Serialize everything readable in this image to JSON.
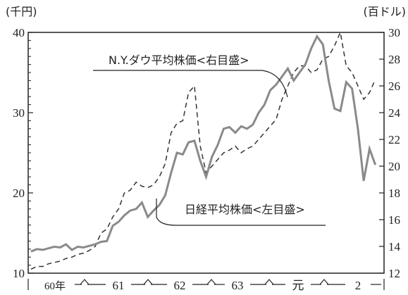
{
  "chart_data": {
    "type": "line",
    "left_unit": "(千円)",
    "right_unit": "(百ドル)",
    "left_ylim": [
      10,
      40
    ],
    "right_ylim": [
      12,
      30
    ],
    "left_ticks": [
      "10",
      "20",
      "30",
      "40"
    ],
    "right_ticks": [
      "12",
      "14",
      "16",
      "18",
      "20",
      "22",
      "24",
      "26",
      "28",
      "30"
    ],
    "x_categories": [
      "60年",
      "61",
      "62",
      "63",
      "元",
      "2"
    ],
    "x_range": [
      0,
      60
    ],
    "series": [
      {
        "name": "日経平均株価<左目盛>",
        "axis": "left",
        "style": "solid",
        "color": "#8a8a8a",
        "x": [
          0,
          1,
          2,
          3,
          4,
          5,
          6,
          7,
          8,
          9,
          10,
          11,
          12,
          13,
          14,
          15,
          16,
          17,
          18,
          19,
          20,
          21,
          22,
          23,
          24,
          25,
          26,
          27,
          28,
          29,
          30,
          31,
          32,
          33,
          34,
          35,
          36,
          37,
          38,
          39,
          40,
          41,
          42,
          43,
          44,
          45,
          46,
          47,
          48,
          49,
          50,
          51,
          52,
          53,
          54,
          55,
          56,
          57,
          58,
          59
        ],
        "values": [
          12.7,
          13.0,
          12.9,
          13.1,
          13.3,
          13.2,
          13.6,
          12.9,
          13.3,
          13.2,
          13.4,
          13.6,
          13.9,
          14.0,
          15.9,
          16.4,
          17.2,
          17.8,
          18.0,
          18.8,
          17.0,
          17.8,
          18.5,
          19.7,
          22.5,
          25.0,
          24.8,
          26.3,
          26.5,
          24.0,
          22.0,
          24.5,
          26.0,
          28.0,
          28.2,
          27.5,
          28.3,
          28.0,
          28.5,
          30.0,
          31.0,
          32.8,
          33.5,
          34.5,
          35.5,
          34.0,
          35.0,
          36.0,
          38.0,
          39.5,
          38.5,
          34.0,
          30.5,
          30.2,
          33.8,
          33.0,
          28.0,
          21.5,
          25.5,
          23.5
        ]
      },
      {
        "name": "N.Y.ダウ平均株価<右目盛>",
        "axis": "right",
        "style": "dashed",
        "color": "#333333",
        "x": [
          0,
          1,
          2,
          3,
          4,
          5,
          6,
          7,
          8,
          9,
          10,
          11,
          12,
          13,
          14,
          15,
          16,
          17,
          18,
          19,
          20,
          21,
          22,
          23,
          24,
          25,
          26,
          27,
          28,
          29,
          30,
          31,
          32,
          33,
          34,
          35,
          36,
          37,
          38,
          39,
          40,
          41,
          42,
          43,
          44,
          45,
          46,
          47,
          48,
          49,
          50,
          51,
          52,
          53,
          54,
          55,
          56,
          57,
          58,
          59
        ],
        "values": [
          12.3,
          12.5,
          12.5,
          12.7,
          12.8,
          12.9,
          13.1,
          13.2,
          13.4,
          13.5,
          13.7,
          14.0,
          15.0,
          15.3,
          16.2,
          16.8,
          18.0,
          18.2,
          18.8,
          18.5,
          18.4,
          18.6,
          19.2,
          20.2,
          22.5,
          23.2,
          23.4,
          25.5,
          26.0,
          21.5,
          19.5,
          20.0,
          20.5,
          21.0,
          21.2,
          21.5,
          21.0,
          21.3,
          21.5,
          22.0,
          22.5,
          23.0,
          23.5,
          25.0,
          26.0,
          27.0,
          27.5,
          27.5,
          27.0,
          27.2,
          28.0,
          28.2,
          29.0,
          30.0,
          27.5,
          27.0,
          26.0,
          25.0,
          25.5,
          26.5
        ]
      }
    ]
  }
}
